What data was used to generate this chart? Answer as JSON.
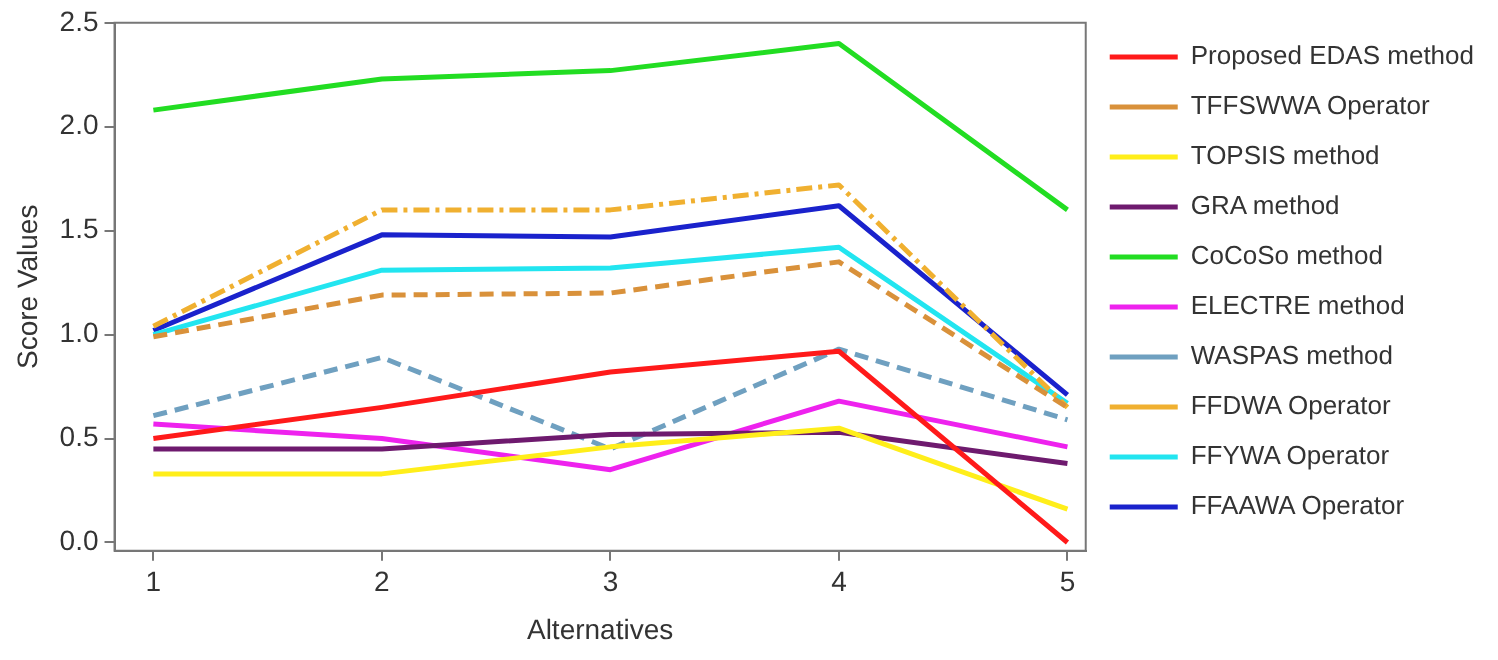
{
  "chart_data": {
    "type": "line",
    "xlabel": "Alternatives",
    "ylabel": "Score Values",
    "x": [
      1,
      2,
      3,
      4,
      5
    ],
    "xlim": [
      0.83,
      5.08
    ],
    "xticks": [
      1,
      2,
      3,
      4,
      5
    ],
    "ylim": [
      -0.04,
      2.5
    ],
    "yticks": [
      {
        "value": 0,
        "label": "0.0"
      },
      {
        "value": 0.5,
        "label": "0.5"
      },
      {
        "value": 1,
        "label": "1.0"
      },
      {
        "value": 1.5,
        "label": "1.5"
      },
      {
        "value": 2,
        "label": "2.0"
      },
      {
        "value": 2.5,
        "label": "2.5"
      }
    ],
    "grid": false,
    "legend": "right",
    "marker": "none",
    "series": [
      {
        "name": "Proposed EDAS method",
        "color": "#ff1a1a",
        "line_style": "solid",
        "values": [
          0.5,
          0.65,
          0.82,
          0.92,
          0.0
        ]
      },
      {
        "name": "TFFSWWA Operator",
        "color": "#d9913a",
        "line_style": "dashed",
        "values": [
          0.99,
          1.19,
          1.2,
          1.35,
          0.65
        ]
      },
      {
        "name": "TOPSIS method",
        "color": "#ffee1a",
        "line_style": "solid",
        "values": [
          0.33,
          0.33,
          0.46,
          0.55,
          0.16
        ]
      },
      {
        "name": "GRA method",
        "color": "#6e1a6e",
        "line_style": "solid",
        "values": [
          0.45,
          0.45,
          0.52,
          0.53,
          0.38
        ]
      },
      {
        "name": "CoCoSo method",
        "color": "#22dd22",
        "line_style": "solid",
        "values": [
          2.08,
          2.23,
          2.27,
          2.4,
          1.6
        ]
      },
      {
        "name": "ELECTRE method",
        "color": "#ee22ee",
        "line_style": "solid",
        "values": [
          0.57,
          0.5,
          0.35,
          0.68,
          0.46
        ]
      },
      {
        "name": "WASPAS method",
        "color": "#6fa0c0",
        "line_style": "dashed",
        "values": [
          0.61,
          0.89,
          0.45,
          0.93,
          0.59
        ]
      },
      {
        "name": "FFDWA Operator",
        "color": "#f0b030",
        "line_style": "dashdot",
        "values": [
          1.04,
          1.6,
          1.6,
          1.72,
          0.65
        ]
      },
      {
        "name": "FFYWA Operator",
        "color": "#22e5f0",
        "line_style": "solid",
        "values": [
          1.0,
          1.31,
          1.32,
          1.42,
          0.67
        ]
      },
      {
        "name": "FFAAWA Operator",
        "color": "#1a22cc",
        "line_style": "solid",
        "values": [
          1.02,
          1.48,
          1.47,
          1.62,
          0.71
        ]
      }
    ]
  }
}
